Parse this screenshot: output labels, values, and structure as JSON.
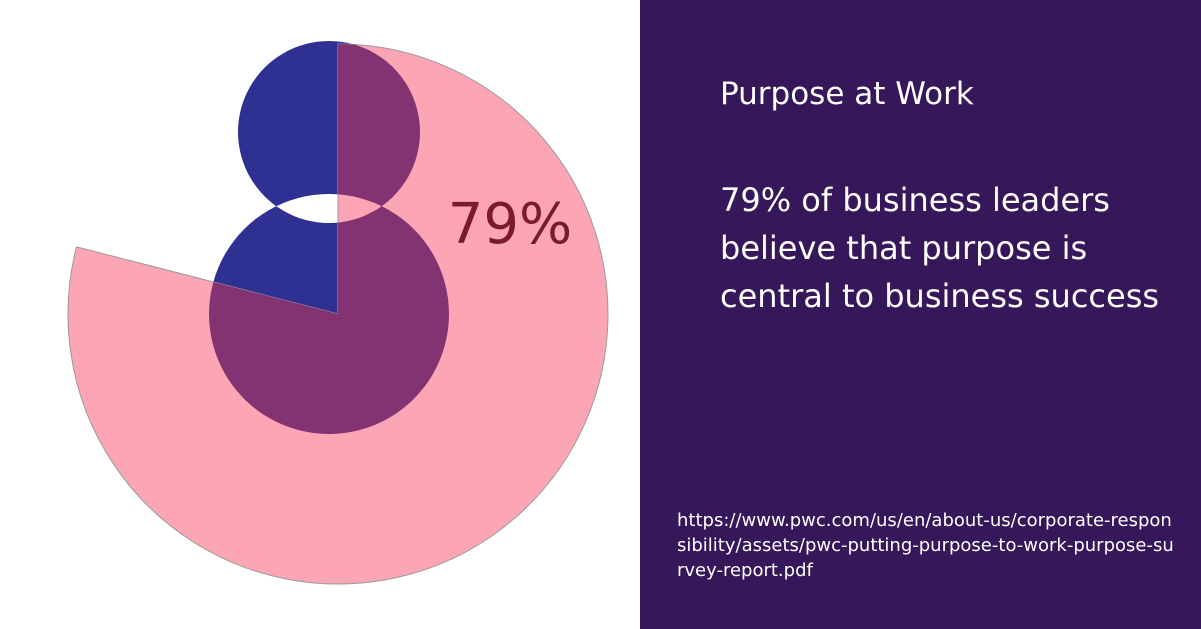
{
  "chart_data": {
    "type": "pie",
    "values": [
      79
    ],
    "value_labels": [
      "79%"
    ],
    "color": "#fca5b5",
    "ring_color": "#2e3192",
    "overlap_color": "#833272",
    "label_color": "#7a1a2a"
  },
  "panel": {
    "title": "Purpose at Work",
    "statement": "79% of business leaders believe that purpose is central to business success",
    "source": "https://www.pwc.com/us/en/about-us/corporate-responsibility/assets/pwc-putting-purpose-to-work-purpose-survey-report.pdf"
  }
}
